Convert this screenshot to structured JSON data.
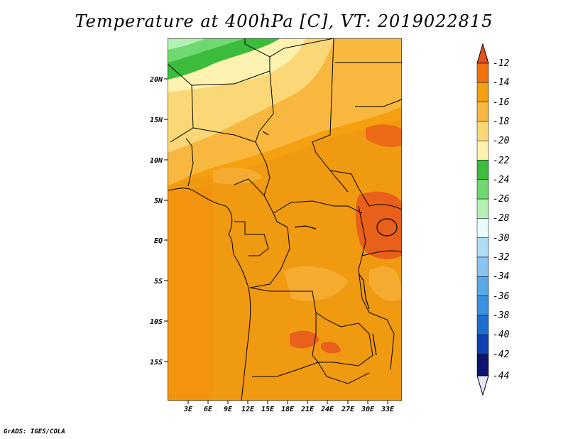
{
  "title": "Temperature at 400hPa [C], VT: 2019022815",
  "credit": "GrADS: IGES/COLA",
  "lat_labels": [
    "20N",
    "15N",
    "10N",
    "5N",
    "EQ",
    "5S",
    "10S",
    "15S"
  ],
  "lon_labels": [
    "3E",
    "6E",
    "9E",
    "12E",
    "15E",
    "18E",
    "21E",
    "24E",
    "27E",
    "30E",
    "33E"
  ],
  "colorbar": {
    "labels": [
      "-12",
      "-14",
      "-16",
      "-18",
      "-20",
      "-22",
      "-24",
      "-26",
      "-28",
      "-30",
      "-32",
      "-34",
      "-36",
      "-38",
      "-40",
      "-42",
      "-44"
    ],
    "colors": [
      "#e8501e",
      "#f07010",
      "#f5a010",
      "#f8b840",
      "#fad878",
      "#fdf2b0",
      "#3cbc3c",
      "#70d870",
      "#b4f0b4",
      "#e8fcfc",
      "#b0dcf8",
      "#88c4f0",
      "#58a8e8",
      "#3890e0",
      "#1e6ed2",
      "#1040b0",
      "#0c1470",
      "#e6e6f8"
    ]
  },
  "chart_data": {
    "type": "heatmap",
    "title": "Temperature at 400hPa [C], VT: 2019022815",
    "variable": "Temperature at 400hPa",
    "units": "C",
    "valid_time": "2019022815",
    "lat_ticks": [
      "20N",
      "15N",
      "10N",
      "5N",
      "EQ",
      "5S",
      "10S",
      "15S"
    ],
    "lon_ticks": [
      "3E",
      "6E",
      "9E",
      "12E",
      "15E",
      "18E",
      "21E",
      "24E",
      "27E",
      "30E",
      "33E"
    ],
    "color_levels": [
      -44,
      -42,
      -40,
      -38,
      -36,
      -34,
      -32,
      -30,
      -28,
      -26,
      -24,
      -22,
      -20,
      -18,
      -16,
      -14,
      -12
    ]
  }
}
